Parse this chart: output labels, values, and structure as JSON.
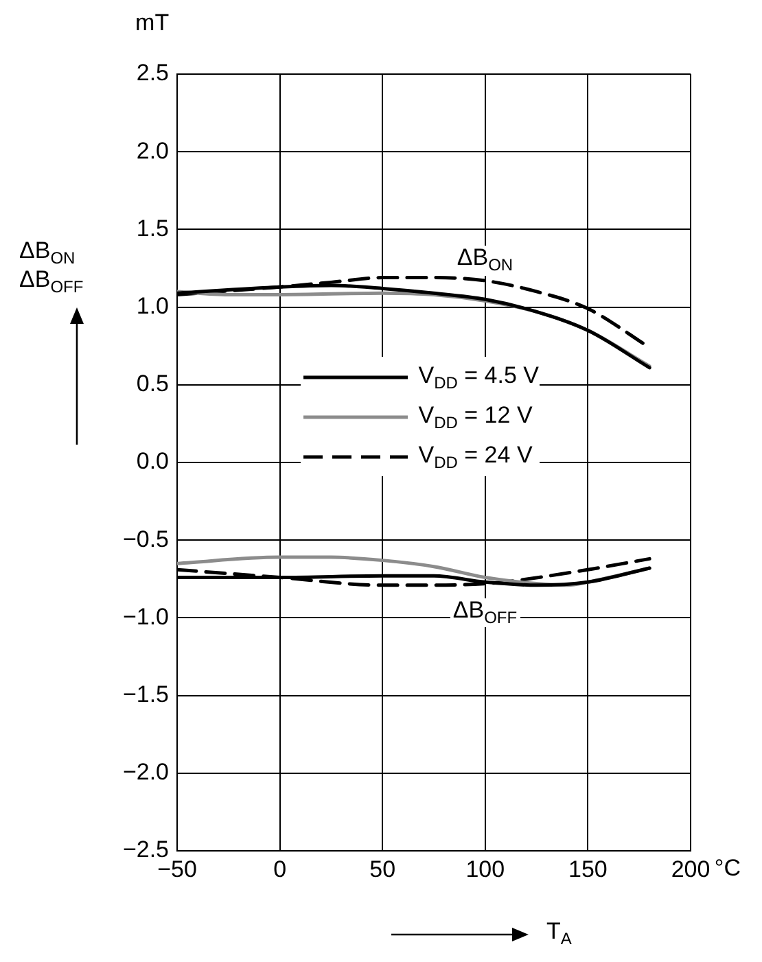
{
  "chart_data": {
    "type": "line",
    "ylabel": "ΔB$_{ON}$ ΔB$_{OFF}$",
    "xlabel": "T$_{A}$",
    "annotations": [
      "mT",
      "°C",
      "ΔB$_{ON}$",
      "ΔB$_{OFF}$"
    ],
    "xlim": [
      -50,
      200
    ],
    "ylim": [
      -2.5,
      2.5
    ],
    "xticks": [
      {
        "value": -50,
        "label": "−50"
      },
      0,
      50,
      100,
      150,
      200
    ],
    "yticks": [
      {
        "value": -2.5,
        "label": "−2.5"
      },
      {
        "value": -2,
        "label": "−2.0"
      },
      {
        "value": -1.5,
        "label": "−1.5"
      },
      {
        "value": -1,
        "label": "−1.0"
      },
      {
        "value": -0.5,
        "label": "−0.5"
      },
      {
        "value": 0,
        "label": "0.0"
      },
      {
        "value": 0.5,
        "label": "0.5"
      },
      {
        "value": 1,
        "label": "1.0"
      },
      {
        "value": 1.5,
        "label": "1.5"
      },
      {
        "value": 2,
        "label": "2.0"
      },
      {
        "value": 2.5,
        "label": "2.5"
      }
    ],
    "grid": true,
    "legend": "center",
    "marker": "none",
    "series": [
      {
        "name": "V$_{DD}$ = 4.5 V",
        "color": "#000000",
        "line_style": "solid",
        "x": [
          -50,
          0,
          25,
          50,
          75,
          100,
          125,
          150,
          180
        ],
        "values": [
          1.09,
          1.13,
          1.14,
          1.12,
          1.09,
          1.05,
          0.97,
          0.85,
          0.61
        ]
      },
      {
        "name": "V$_{DD}$ = 12 V",
        "color": "#8c8c8c",
        "line_style": "solid",
        "x": [
          -50,
          -25,
          0,
          50,
          75,
          100,
          125,
          150,
          180
        ],
        "values": [
          1.1,
          1.08,
          1.08,
          1.09,
          1.08,
          1.04,
          0.97,
          0.85,
          0.62
        ]
      },
      {
        "name": "V$_{DD}$ = 24 V",
        "color": "#000000",
        "line_style": "dashed",
        "x": [
          -50,
          0,
          25,
          50,
          75,
          100,
          125,
          150,
          180
        ],
        "values": [
          1.08,
          1.13,
          1.16,
          1.19,
          1.19,
          1.17,
          1.1,
          0.99,
          0.74
        ]
      },
      {
        "color": "#000000",
        "line_style": "solid",
        "x": [
          -50,
          0,
          50,
          75,
          100,
          125,
          150,
          180
        ],
        "values": [
          -0.74,
          -0.74,
          -0.73,
          -0.73,
          -0.77,
          -0.79,
          -0.77,
          -0.68
        ]
      },
      {
        "color": "#8c8c8c",
        "line_style": "solid",
        "x": [
          -50,
          0,
          25,
          50,
          75,
          100,
          125,
          140,
          150,
          180
        ],
        "values": [
          -0.65,
          -0.61,
          -0.61,
          -0.63,
          -0.67,
          -0.74,
          -0.78,
          -0.79,
          -0.77,
          -0.68
        ]
      },
      {
        "color": "#000000",
        "line_style": "dashed",
        "x": [
          -50,
          0,
          50,
          75,
          100,
          115,
          150,
          180
        ],
        "values": [
          -0.69,
          -0.74,
          -0.79,
          -0.79,
          -0.78,
          -0.76,
          -0.69,
          -0.62
        ]
      }
    ]
  }
}
